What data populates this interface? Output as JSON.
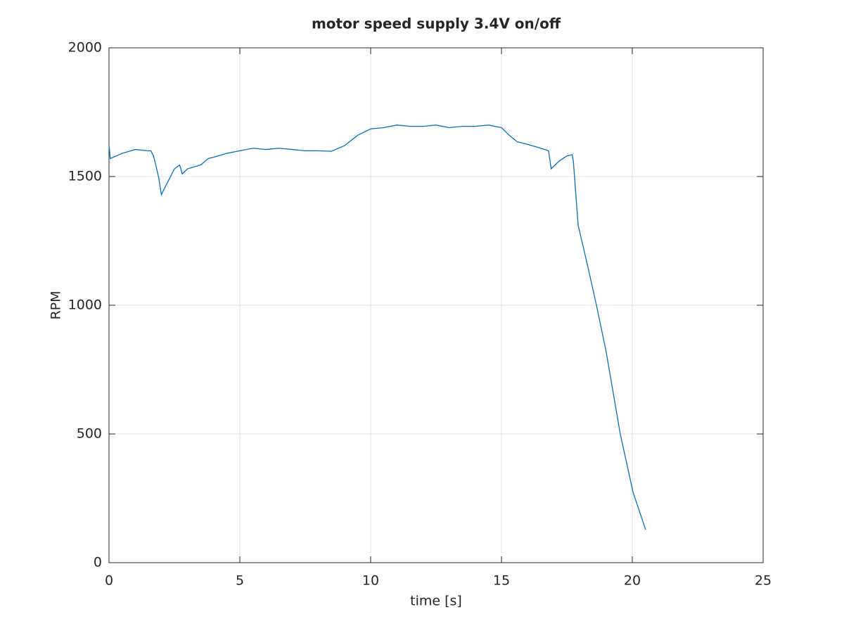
{
  "chart_data": {
    "type": "line",
    "title": "motor speed supply 3.4V on/off",
    "xlabel": "time [s]",
    "ylabel": "RPM",
    "color": "#0072bd",
    "grid": true,
    "xlim": [
      0,
      25
    ],
    "xticks": [
      0,
      5,
      10,
      15,
      20,
      25
    ],
    "ylim": [
      0,
      2000
    ],
    "yticks": [
      0,
      500,
      1000,
      1500,
      2000
    ],
    "x": [
      0.0,
      0.05,
      0.5,
      1.0,
      1.5,
      1.6,
      1.7,
      1.8,
      1.9,
      2.0,
      2.2,
      2.5,
      2.7,
      2.8,
      3.0,
      3.5,
      3.8,
      4.0,
      4.5,
      5.0,
      5.5,
      6.0,
      6.5,
      7.0,
      7.5,
      8.0,
      8.5,
      9.0,
      9.5,
      10.0,
      10.5,
      11.0,
      11.5,
      12.0,
      12.5,
      13.0,
      13.5,
      14.0,
      14.5,
      15.0,
      15.3,
      15.6,
      16.0,
      16.5,
      16.8,
      16.9,
      17.2,
      17.5,
      17.7,
      17.75,
      17.93,
      18.3,
      18.63,
      19.0,
      19.54,
      20.03,
      20.51
    ],
    "values": [
      1620,
      1570,
      1590,
      1605,
      1600,
      1600,
      1580,
      1540,
      1495,
      1430,
      1470,
      1530,
      1545,
      1510,
      1530,
      1545,
      1570,
      1575,
      1590,
      1600,
      1610,
      1605,
      1610,
      1605,
      1600,
      1600,
      1598,
      1620,
      1660,
      1685,
      1690,
      1700,
      1695,
      1695,
      1700,
      1690,
      1695,
      1695,
      1700,
      1690,
      1660,
      1635,
      1625,
      1610,
      1600,
      1530,
      1560,
      1580,
      1585,
      1557,
      1311,
      1150,
      1000,
      820,
      500,
      273,
      128
    ]
  }
}
